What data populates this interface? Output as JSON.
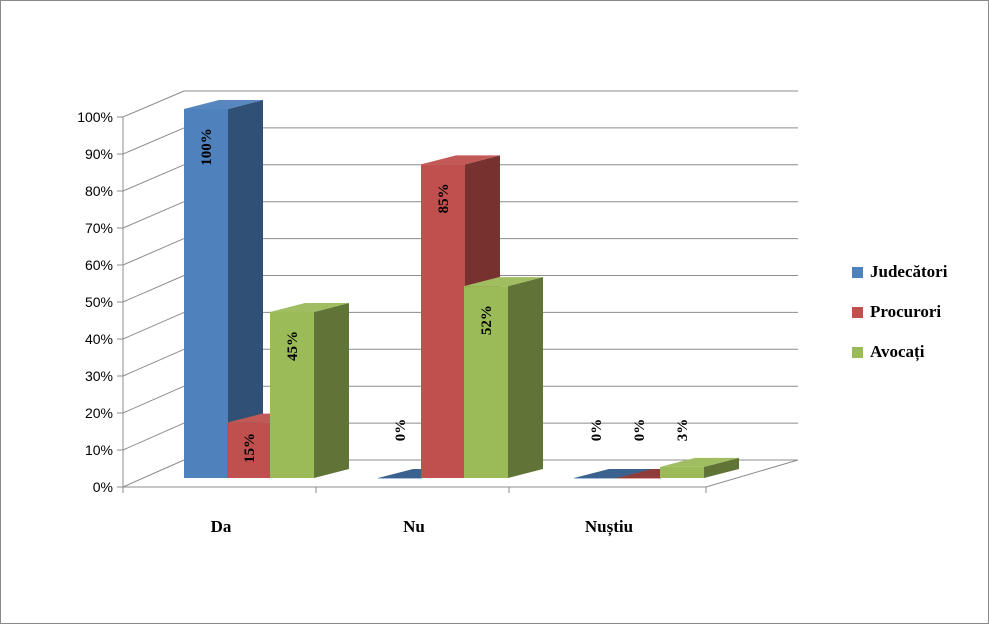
{
  "chart_data": {
    "type": "bar",
    "style": "3d-clustered-column",
    "categories": [
      "Da",
      "Nu",
      "Nuștiu"
    ],
    "series": [
      {
        "name": "Judecători",
        "values": [
          100,
          0,
          0
        ],
        "labels": [
          "100%",
          "0%",
          "0%"
        ],
        "color": "#4f81bd"
      },
      {
        "name": "Procurori",
        "values": [
          15,
          85,
          0
        ],
        "labels": [
          "15%",
          "85%",
          "0%"
        ],
        "color": "#c0504d"
      },
      {
        "name": "Avocați",
        "values": [
          45,
          52,
          3
        ],
        "labels": [
          "45%",
          "52%",
          "3%"
        ],
        "color": "#9bbb59"
      }
    ],
    "yticks": [
      "0%",
      "10%",
      "20%",
      "30%",
      "40%",
      "50%",
      "60%",
      "70%",
      "80%",
      "90%",
      "100%"
    ],
    "ylim": [
      0,
      100
    ],
    "grid": true,
    "legend": "right"
  }
}
